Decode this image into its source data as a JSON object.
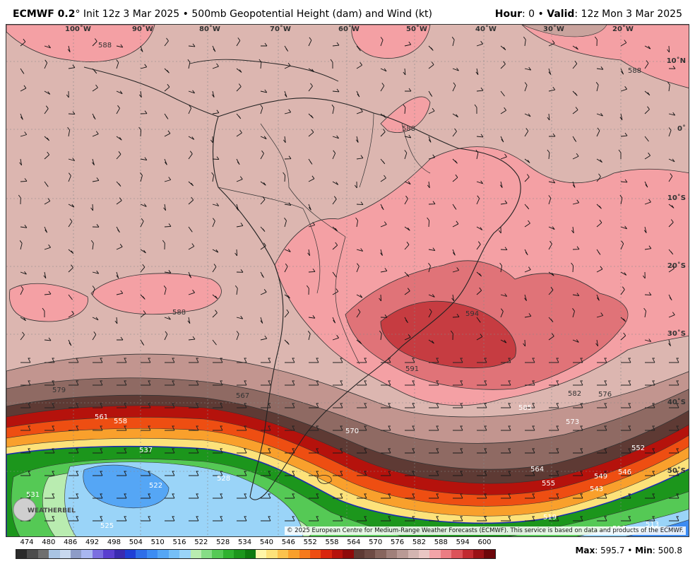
{
  "header": {
    "model": "ECMWF 0.2",
    "degree_mark": "°",
    "init": "Init 12z 3 Mar 2025",
    "separator": "•",
    "product": "500mb Geopotential Height (dam) and Wind (kt)",
    "hour_label": "Hour",
    "hour_value": ": 0",
    "valid_label": "Valid",
    "valid_value": ": 12z Mon 3 Mar 2025"
  },
  "map": {
    "longitude_labels": [
      "100˚W",
      "90˚W",
      "80˚W",
      "70˚W",
      "60˚W",
      "50˚W",
      "40˚W",
      "30˚W",
      "20˚W"
    ],
    "latitude_labels": [
      "10˚N",
      "0˚",
      "10˚S",
      "20˚S",
      "30˚S",
      "40˚S",
      "50˚S"
    ],
    "contour_labels": [
      "588",
      "588",
      "588",
      "588",
      "594",
      "591",
      "585",
      "582",
      "579",
      "576",
      "573",
      "570",
      "567",
      "564",
      "561",
      "558",
      "555",
      "552",
      "549",
      "546",
      "543",
      "537",
      "531",
      "528",
      "525",
      "522",
      "519",
      "516",
      "513"
    ],
    "copyright": "© 2025 European Centre for Medium-Range Weather Forecasts (ECMWF). This service is based on data and products of the ECMWF.",
    "logo_text": "WEATHERBELL"
  },
  "colorbar": {
    "ticks": [
      "474",
      "480",
      "486",
      "492",
      "498",
      "504",
      "510",
      "516",
      "522",
      "528",
      "534",
      "540",
      "546",
      "552",
      "558",
      "564",
      "570",
      "576",
      "582",
      "588",
      "594",
      "600"
    ],
    "colors": [
      "#2b2b2b",
      "#4d4d4d",
      "#6f6f6f",
      "#a9c4e3",
      "#c8d8ee",
      "#8e9cc7",
      "#a9b7f0",
      "#7b6fe0",
      "#5a3fcf",
      "#3a2bb0",
      "#1f3fd6",
      "#2e6ee8",
      "#3d8cf2",
      "#55a6f5",
      "#76bff7",
      "#9ad4f8",
      "#b9ecb0",
      "#86dd86",
      "#55c955",
      "#2fb12f",
      "#1c961c",
      "#0f7a0f",
      "#fff6a8",
      "#fde27a",
      "#fbc24d",
      "#f9a02c",
      "#f57a1c",
      "#ee4e12",
      "#d9260e",
      "#b5120c",
      "#8e0a0a",
      "#5e3a34",
      "#6e4b44",
      "#87655d",
      "#a0807a",
      "#b99a95",
      "#d3b5b1",
      "#e9c7c4",
      "#f3a4a8",
      "#ec7d83",
      "#dc5359",
      "#c12a30",
      "#9a1116",
      "#6d060a"
    ],
    "palette_contours": {
      "land_bg": "#dcb6b0",
      "ridge_588": "#f4a0a4",
      "ridge_591": "#e77b80",
      "ridge_594": "#cf4a4f",
      "ridge_core": "#b8383d",
      "trough_cold": "#8fc7f0",
      "trough_core": "#5a9ee6"
    }
  },
  "stats": {
    "max_label": "Max",
    "max_value": ": 595.7",
    "separator": "•",
    "min_label": "Min",
    "min_value": ": 500.8"
  }
}
